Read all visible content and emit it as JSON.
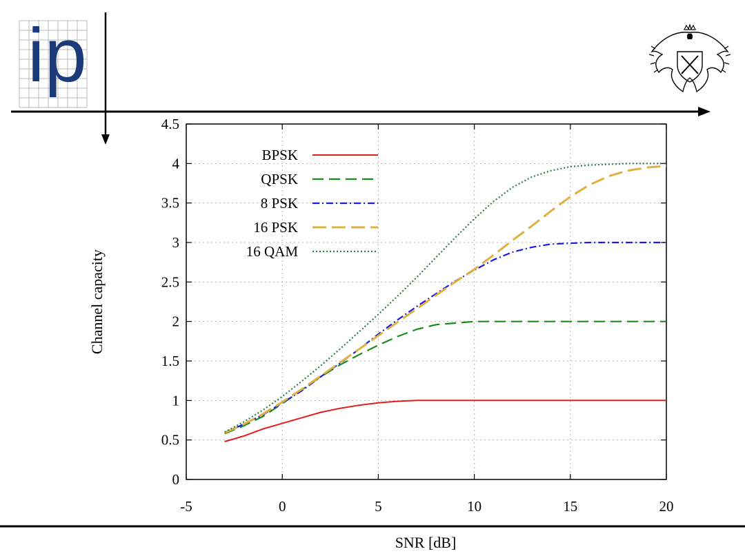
{
  "header": {
    "logo_text": "ip",
    "crest_icon": "university-eagle-crest-icon"
  },
  "colors": {
    "logo_blue": "#1b3a7a",
    "grid": "#b0b0b0",
    "axis": "#000000"
  },
  "chart_data": {
    "type": "line",
    "title": "",
    "xlabel": "SNR [dB]",
    "ylabel": "Channel capacity",
    "xlim": [
      -5,
      20
    ],
    "ylim": [
      0,
      4.5
    ],
    "xticks": [
      -5,
      0,
      5,
      10,
      15,
      20
    ],
    "xtick_labels": [
      "-5",
      "0",
      "5",
      "10",
      "15",
      "20"
    ],
    "yticks": [
      0,
      0.5,
      1,
      1.5,
      2,
      2.5,
      3,
      3.5,
      4,
      4.5
    ],
    "ytick_labels": [
      "0",
      "0.5",
      "1",
      "1.5",
      "2",
      "2.5",
      "3",
      "3.5",
      "4",
      "4.5"
    ],
    "grid": true,
    "legend_position": "top-left",
    "x": [
      -3,
      -2,
      -1,
      0,
      1,
      2,
      3,
      4,
      5,
      6,
      7,
      8,
      9,
      10,
      11,
      12,
      13,
      14,
      15,
      16,
      17,
      18,
      19,
      20
    ],
    "series": [
      {
        "name": "BPSK",
        "color": "#e41a1c",
        "dash": "",
        "width": 2,
        "values": [
          0.48,
          0.55,
          0.64,
          0.71,
          0.78,
          0.85,
          0.9,
          0.94,
          0.97,
          0.99,
          1.0,
          1.0,
          1.0,
          1.0,
          1.0,
          1.0,
          1.0,
          1.0,
          1.0,
          1.0,
          1.0,
          1.0,
          1.0,
          1.0
        ]
      },
      {
        "name": "QPSK",
        "color": "#1a8a1a",
        "dash": "16,8",
        "width": 2.2,
        "values": [
          0.58,
          0.68,
          0.8,
          0.96,
          1.13,
          1.3,
          1.45,
          1.58,
          1.7,
          1.81,
          1.9,
          1.96,
          1.98,
          2.0,
          2.0,
          2.0,
          2.0,
          2.0,
          2.0,
          2.0,
          2.0,
          2.0,
          2.0,
          2.0
        ]
      },
      {
        "name": "8 PSK",
        "color": "#1a1ae0",
        "dash": "10,4,2,4",
        "width": 2.2,
        "values": [
          0.59,
          0.7,
          0.82,
          0.97,
          1.12,
          1.3,
          1.47,
          1.65,
          1.84,
          2.02,
          2.19,
          2.35,
          2.51,
          2.65,
          2.78,
          2.88,
          2.94,
          2.98,
          2.99,
          3.0,
          3.0,
          3.0,
          3.0,
          3.0
        ]
      },
      {
        "name": "16 PSK",
        "color": "#e0b040",
        "dash": "20,8",
        "width": 3,
        "values": [
          0.59,
          0.7,
          0.83,
          0.98,
          1.14,
          1.31,
          1.48,
          1.65,
          1.82,
          1.99,
          2.16,
          2.33,
          2.5,
          2.66,
          2.84,
          3.03,
          3.21,
          3.4,
          3.58,
          3.73,
          3.84,
          3.91,
          3.95,
          3.97
        ]
      },
      {
        "name": "16 QAM",
        "color": "#2e7d4a",
        "dash": "2,3",
        "width": 2.2,
        "values": [
          0.6,
          0.73,
          0.88,
          1.05,
          1.24,
          1.44,
          1.65,
          1.87,
          2.09,
          2.32,
          2.56,
          2.81,
          3.06,
          3.3,
          3.52,
          3.7,
          3.83,
          3.91,
          3.96,
          3.98,
          3.99,
          4.0,
          4.0,
          4.0
        ]
      }
    ]
  }
}
